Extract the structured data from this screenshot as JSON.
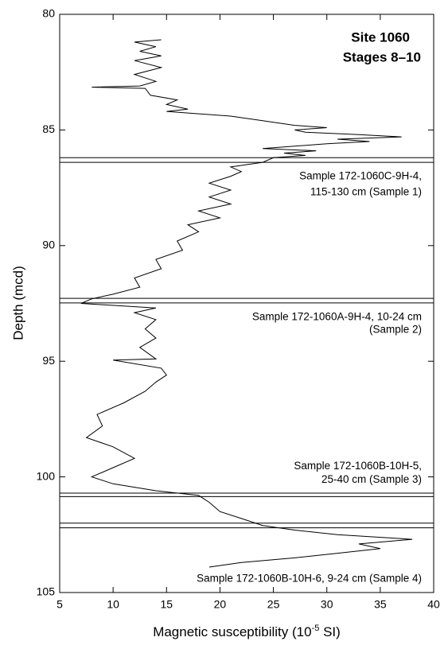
{
  "chart_data": {
    "type": "line",
    "title": [
      "Site 1060",
      "Stages 8–10"
    ],
    "x_label": [
      "Magnetic susceptibility (10",
      "-5",
      " SI)"
    ],
    "y_label": "Depth (mcd)",
    "xlim": [
      5,
      40
    ],
    "ylim": [
      80,
      105
    ],
    "xticks": [
      5,
      10,
      15,
      20,
      25,
      30,
      35,
      40
    ],
    "yticks": [
      80,
      85,
      90,
      95,
      100,
      105
    ],
    "y_inverted": true,
    "color": "#000000",
    "series": [
      {
        "x": [
          14.5,
          12,
          14,
          12.5,
          14.5,
          12,
          14.5,
          12,
          14,
          12.5,
          8,
          13,
          13.5,
          16,
          15,
          17,
          15,
          21,
          24,
          27,
          30,
          27,
          28,
          33,
          37,
          31,
          34,
          30,
          24,
          29,
          26,
          28,
          25,
          24,
          21,
          22,
          21,
          19,
          21,
          19,
          21,
          18,
          20,
          17,
          18,
          16,
          16.5,
          14,
          14.5,
          12,
          12.5,
          10,
          8,
          7,
          14,
          12,
          14,
          13,
          14,
          12.5,
          14,
          10,
          14.5,
          15,
          14,
          13,
          11,
          8.5,
          9,
          7.5,
          10,
          12,
          10,
          8,
          10,
          14,
          18,
          19,
          20,
          22,
          24,
          27,
          31,
          38,
          33,
          35,
          31,
          27,
          22,
          19
        ],
        "y": [
          81.1,
          81.2,
          81.4,
          81.6,
          81.8,
          82.0,
          82.3,
          82.6,
          82.9,
          83.1,
          83.15,
          83.2,
          83.5,
          83.7,
          83.9,
          84.1,
          84.2,
          84.4,
          84.6,
          84.8,
          84.9,
          85.0,
          85.1,
          85.2,
          85.3,
          85.4,
          85.5,
          85.6,
          85.8,
          85.9,
          86.0,
          86.1,
          86.2,
          86.4,
          86.6,
          86.8,
          87.0,
          87.3,
          87.6,
          87.9,
          88.2,
          88.5,
          88.8,
          89.1,
          89.4,
          89.8,
          90.2,
          90.6,
          91.0,
          91.4,
          91.8,
          92.1,
          92.3,
          92.5,
          92.7,
          92.9,
          93.2,
          93.6,
          94.0,
          94.4,
          94.9,
          94.95,
          95.3,
          95.6,
          95.9,
          96.3,
          96.8,
          97.3,
          97.8,
          98.3,
          98.7,
          99.2,
          99.6,
          100.0,
          100.3,
          100.6,
          100.8,
          101.1,
          101.5,
          101.8,
          102.1,
          102.3,
          102.5,
          102.7,
          102.9,
          103.1,
          103.3,
          103.5,
          103.7,
          103.9
        ]
      }
    ],
    "sample_intervals": [
      {
        "depths": [
          86.2,
          86.4
        ],
        "label": [
          "Sample 172-1060C-9H-4,",
          "115-130 cm (Sample 1)"
        ]
      },
      {
        "depths": [
          92.28,
          92.48
        ],
        "label": [
          "Sample 172-1060A-9H-4, 10-24 cm",
          "(Sample 2)"
        ]
      },
      {
        "depths": [
          100.7,
          100.85
        ],
        "label": [
          "Sample 172-1060B-10H-5,",
          "25-40 cm (Sample 3)"
        ]
      },
      {
        "depths": [
          102.0,
          102.2
        ],
        "label": [
          "Sample 172-1060B-10H-6, 9-24 cm (Sample 4)"
        ]
      }
    ]
  }
}
